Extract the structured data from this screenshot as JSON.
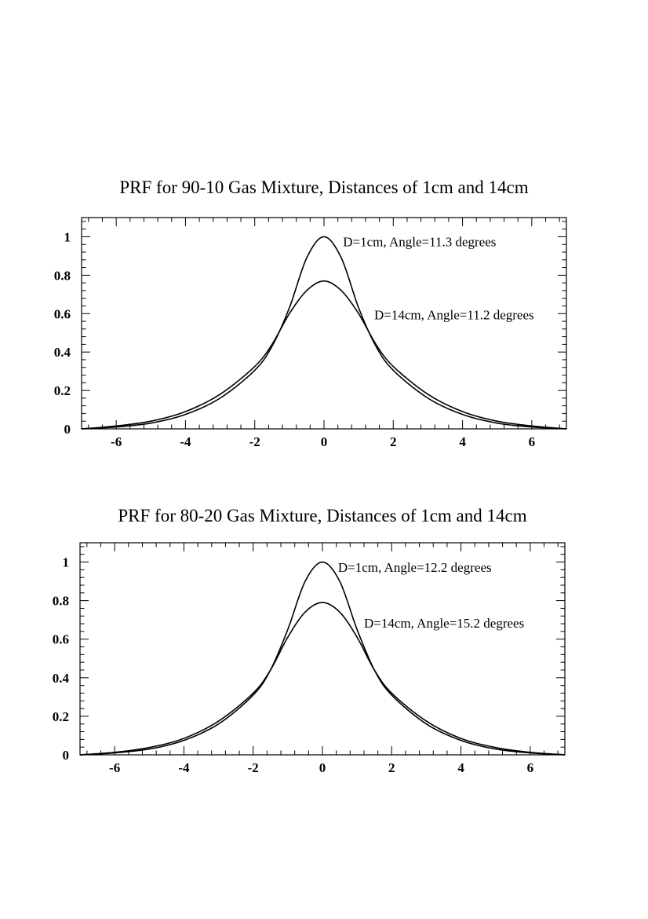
{
  "chart_data": [
    {
      "type": "line",
      "title": "PRF for 90-10 Gas Mixture, Distances of 1cm and 14cm",
      "xlabel": "",
      "ylabel": "",
      "xlim": [
        -7,
        7
      ],
      "ylim": [
        0,
        1.1
      ],
      "x_ticks": [
        -6,
        -4,
        -2,
        0,
        2,
        4,
        6
      ],
      "x_tick_labels": [
        "-6",
        "-4",
        "-2",
        "0",
        "2",
        "4",
        "6"
      ],
      "y_ticks": [
        0,
        0.2,
        0.4,
        0.6,
        0.8,
        1
      ],
      "y_tick_labels": [
        "0",
        "0.2",
        "0.4",
        "0.6",
        "0.8",
        "1"
      ],
      "grid": false,
      "series": [
        {
          "name": "D=1cm, Angle=11.3 degrees",
          "x": [
            -7,
            -6,
            -5,
            -4,
            -3,
            -2,
            -1.5,
            -1,
            -0.5,
            0,
            0.5,
            1,
            1.5,
            2,
            3,
            4,
            5,
            6,
            7
          ],
          "y": [
            0.0,
            0.01,
            0.03,
            0.075,
            0.16,
            0.305,
            0.43,
            0.63,
            0.89,
            1.0,
            0.89,
            0.63,
            0.43,
            0.305,
            0.16,
            0.075,
            0.03,
            0.01,
            0.0
          ]
        },
        {
          "name": "D=14cm, Angle=11.2 degrees",
          "x": [
            -7,
            -6,
            -5,
            -4,
            -3,
            -2,
            -1.5,
            -1,
            -0.5,
            0,
            0.5,
            1,
            1.5,
            2,
            3,
            4,
            5,
            6,
            7
          ],
          "y": [
            0.0,
            0.015,
            0.04,
            0.09,
            0.18,
            0.325,
            0.44,
            0.6,
            0.72,
            0.77,
            0.72,
            0.6,
            0.44,
            0.325,
            0.18,
            0.09,
            0.04,
            0.015,
            0.0
          ]
        }
      ],
      "annotations": [
        "D=1cm, Angle=11.3 degrees",
        "D=14cm, Angle=11.2 degrees"
      ]
    },
    {
      "type": "line",
      "title": "PRF for 80-20 Gas Mixture, Distances of 1cm and 14cm",
      "xlabel": "",
      "ylabel": "",
      "xlim": [
        -7,
        7
      ],
      "ylim": [
        0,
        1.1
      ],
      "x_ticks": [
        -6,
        -4,
        -2,
        0,
        2,
        4,
        6
      ],
      "x_tick_labels": [
        "-6",
        "-4",
        "-2",
        "0",
        "2",
        "4",
        "6"
      ],
      "y_ticks": [
        0,
        0.2,
        0.4,
        0.6,
        0.8,
        1
      ],
      "y_tick_labels": [
        "0",
        "0.2",
        "0.4",
        "0.6",
        "0.8",
        "1"
      ],
      "grid": false,
      "series": [
        {
          "name": "D=1cm, Angle=12.2 degrees",
          "x": [
            -7,
            -6,
            -5,
            -4,
            -3,
            -2,
            -1.5,
            -1,
            -0.5,
            0,
            0.5,
            1,
            1.5,
            2,
            3,
            4,
            5,
            6,
            7
          ],
          "y": [
            0.0,
            0.01,
            0.03,
            0.075,
            0.16,
            0.31,
            0.44,
            0.65,
            0.9,
            1.0,
            0.9,
            0.65,
            0.44,
            0.31,
            0.16,
            0.075,
            0.03,
            0.01,
            0.0
          ]
        },
        {
          "name": "D=14cm, Angle=15.2 degrees",
          "x": [
            -7,
            -6,
            -5,
            -4,
            -3,
            -2,
            -1.5,
            -1,
            -0.5,
            0,
            0.5,
            1,
            1.5,
            2,
            3,
            4,
            5,
            6,
            7
          ],
          "y": [
            0.0,
            0.013,
            0.038,
            0.085,
            0.175,
            0.32,
            0.44,
            0.61,
            0.74,
            0.79,
            0.74,
            0.61,
            0.44,
            0.32,
            0.175,
            0.085,
            0.038,
            0.013,
            0.0
          ]
        }
      ],
      "annotations": [
        "D=1cm, Angle=12.2 degrees",
        "D=14cm, Angle=15.2 degrees"
      ]
    }
  ]
}
